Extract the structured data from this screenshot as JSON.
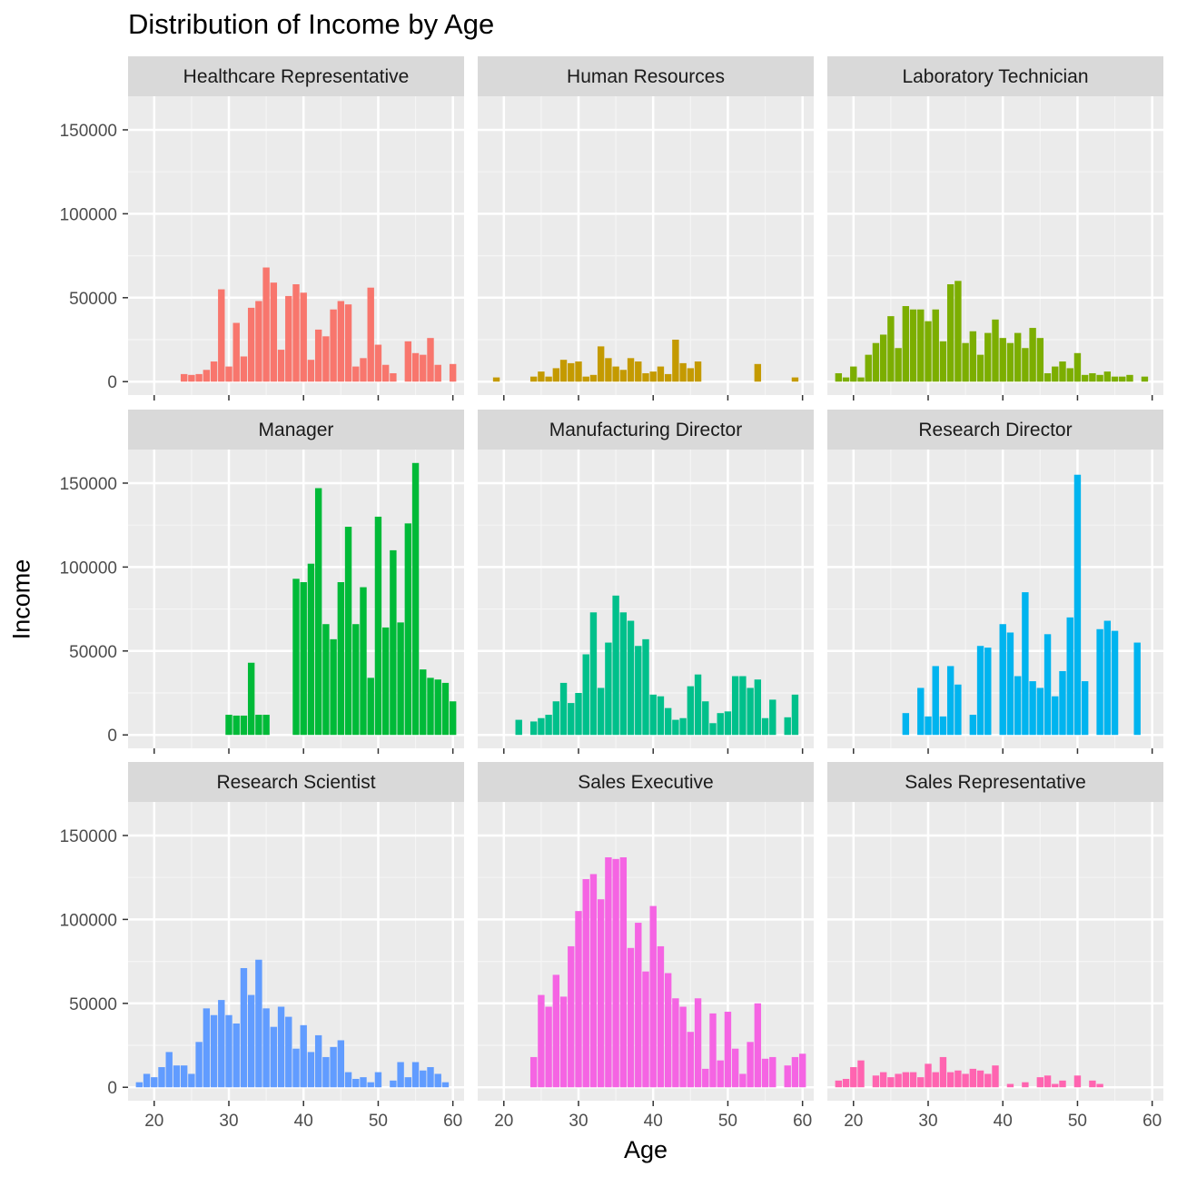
{
  "chart_data": {
    "type": "bar",
    "title": "Distribution of Income by Age",
    "xlabel": "Age",
    "ylabel": "Income",
    "xlim": [
      16.5,
      61.5
    ],
    "ylim": [
      -8000,
      170000
    ],
    "x_ticks": [
      20,
      30,
      40,
      50,
      60
    ],
    "y_ticks": [
      0,
      50000,
      100000,
      150000
    ],
    "grid": true,
    "panels": [
      {
        "name": "Healthcare Representative",
        "color": "#F8766D",
        "x": [
          24,
          25,
          26,
          27,
          28,
          29,
          30,
          31,
          32,
          33,
          34,
          35,
          36,
          37,
          38,
          39,
          40,
          41,
          42,
          43,
          44,
          45,
          46,
          47,
          48,
          49,
          50,
          51,
          52,
          54,
          55,
          56,
          57,
          58,
          60
        ],
        "values": [
          4500,
          4000,
          4500,
          7000,
          12000,
          55000,
          9000,
          35000,
          15000,
          44000,
          48000,
          68000,
          59000,
          19000,
          51000,
          58000,
          53000,
          13000,
          31000,
          27000,
          43000,
          48000,
          46000,
          9000,
          14000,
          56000,
          22000,
          10000,
          5000,
          24000,
          17000,
          16000,
          26000,
          10000,
          10500
        ]
      },
      {
        "name": "Human Resources",
        "color": "#C49A00",
        "x": [
          19,
          24,
          25,
          26,
          27,
          28,
          29,
          30,
          31,
          32,
          33,
          34,
          35,
          36,
          37,
          38,
          39,
          40,
          41,
          42,
          43,
          44,
          45,
          46,
          54,
          59
        ],
        "values": [
          2500,
          3000,
          6000,
          3000,
          8000,
          13000,
          11000,
          12000,
          3000,
          4000,
          21000,
          14000,
          9000,
          7000,
          14000,
          12000,
          5000,
          6000,
          9000,
          4500,
          25000,
          11000,
          8000,
          12000,
          10500,
          2500
        ]
      },
      {
        "name": "Laboratory Technician",
        "color": "#7CAE00",
        "x": [
          18,
          19,
          20,
          21,
          22,
          23,
          24,
          25,
          26,
          27,
          28,
          29,
          30,
          31,
          32,
          33,
          34,
          35,
          36,
          37,
          38,
          39,
          40,
          41,
          42,
          43,
          44,
          45,
          46,
          47,
          48,
          49,
          50,
          51,
          52,
          53,
          54,
          55,
          56,
          57,
          59
        ],
        "values": [
          5000,
          2500,
          9000,
          2500,
          16000,
          23000,
          28000,
          39000,
          20000,
          45000,
          43000,
          43000,
          36000,
          43000,
          24000,
          58000,
          60000,
          23000,
          30000,
          16000,
          29000,
          37000,
          26000,
          23000,
          29000,
          20000,
          32000,
          26000,
          5000,
          9000,
          12000,
          8000,
          17000,
          4000,
          5000,
          4000,
          6000,
          3000,
          3000,
          4000,
          3000
        ]
      },
      {
        "name": "Manager",
        "color": "#00BA38",
        "x": [
          30,
          31,
          32,
          33,
          34,
          35,
          39,
          40,
          41,
          42,
          43,
          44,
          45,
          46,
          47,
          48,
          49,
          50,
          51,
          52,
          53,
          54,
          55,
          56,
          57,
          58,
          59,
          60
        ],
        "values": [
          12000,
          11500,
          11500,
          43000,
          12000,
          12000,
          93000,
          91000,
          102000,
          147000,
          66000,
          57000,
          91000,
          124000,
          66000,
          88000,
          34000,
          130000,
          64000,
          110000,
          67000,
          126000,
          162000,
          39000,
          34000,
          33000,
          31000,
          20000
        ]
      },
      {
        "name": "Manufacturing Director",
        "color": "#00C08B",
        "x": [
          22,
          24,
          25,
          26,
          27,
          28,
          29,
          30,
          31,
          32,
          33,
          34,
          35,
          36,
          37,
          38,
          39,
          40,
          41,
          42,
          43,
          44,
          45,
          46,
          47,
          48,
          49,
          50,
          51,
          52,
          53,
          54,
          55,
          56,
          58,
          59
        ],
        "values": [
          9000,
          8000,
          10000,
          12000,
          20000,
          31000,
          19000,
          25000,
          48000,
          73000,
          28000,
          55000,
          83000,
          73000,
          68000,
          53000,
          57000,
          24000,
          23000,
          16000,
          9000,
          10000,
          29000,
          36000,
          20000,
          7000,
          13000,
          14000,
          35000,
          35000,
          28000,
          33000,
          10000,
          21000,
          10500,
          24000
        ]
      },
      {
        "name": "Research Director",
        "color": "#00B4EF",
        "x": [
          27,
          29,
          30,
          31,
          32,
          33,
          34,
          36,
          37,
          38,
          40,
          41,
          42,
          43,
          44,
          45,
          46,
          47,
          48,
          49,
          50,
          51,
          53,
          54,
          55,
          58
        ],
        "values": [
          13000,
          28000,
          11000,
          41000,
          11000,
          41000,
          30000,
          12000,
          53000,
          52000,
          66000,
          61000,
          35000,
          85000,
          32000,
          28000,
          60000,
          23000,
          38000,
          70000,
          155000,
          32000,
          63000,
          68000,
          62000,
          55000
        ]
      },
      {
        "name": "Research Scientist",
        "color": "#619CFF",
        "x": [
          18,
          19,
          20,
          21,
          22,
          23,
          24,
          25,
          26,
          27,
          28,
          29,
          30,
          31,
          32,
          33,
          34,
          35,
          36,
          37,
          38,
          39,
          40,
          41,
          42,
          43,
          44,
          45,
          46,
          47,
          48,
          49,
          50,
          52,
          53,
          54,
          55,
          56,
          57,
          58,
          59
        ],
        "values": [
          3000,
          8000,
          6000,
          12000,
          21000,
          13000,
          13000,
          8000,
          27000,
          47000,
          43000,
          52000,
          43000,
          38000,
          71000,
          55000,
          76000,
          47000,
          36000,
          48000,
          42000,
          23000,
          37000,
          21000,
          31000,
          18000,
          24000,
          28000,
          9000,
          5000,
          6000,
          3000,
          9000,
          4000,
          15000,
          6000,
          15000,
          10000,
          12000,
          8000,
          3000
        ]
      },
      {
        "name": "Sales Executive",
        "color": "#F564E3",
        "x": [
          24,
          25,
          26,
          27,
          28,
          29,
          30,
          31,
          32,
          33,
          34,
          35,
          36,
          37,
          38,
          39,
          40,
          41,
          42,
          43,
          44,
          45,
          46,
          47,
          48,
          49,
          50,
          51,
          52,
          53,
          54,
          55,
          56,
          58,
          59,
          60
        ],
        "values": [
          18000,
          55000,
          48000,
          67000,
          54000,
          84000,
          105000,
          124000,
          127000,
          112000,
          137000,
          136000,
          137000,
          83000,
          98000,
          69000,
          108000,
          84000,
          68000,
          53000,
          48000,
          33000,
          53000,
          11000,
          44000,
          16000,
          45000,
          23000,
          8000,
          27000,
          50000,
          17000,
          18000,
          13000,
          18000,
          20000
        ]
      },
      {
        "name": "Sales Representative",
        "color": "#FF64B0",
        "x": [
          18,
          19,
          20,
          21,
          23,
          24,
          25,
          26,
          27,
          28,
          29,
          30,
          31,
          32,
          33,
          34,
          35,
          36,
          37,
          38,
          39,
          41,
          43,
          45,
          46,
          47,
          48,
          50,
          52,
          53
        ],
        "values": [
          4000,
          5000,
          12000,
          16000,
          7000,
          9000,
          6000,
          8000,
          9000,
          9000,
          6000,
          14000,
          9000,
          18000,
          9000,
          10000,
          8000,
          11000,
          10000,
          8000,
          13000,
          2000,
          3000,
          6000,
          7000,
          2000,
          4000,
          7000,
          4000,
          2000
        ]
      }
    ]
  }
}
